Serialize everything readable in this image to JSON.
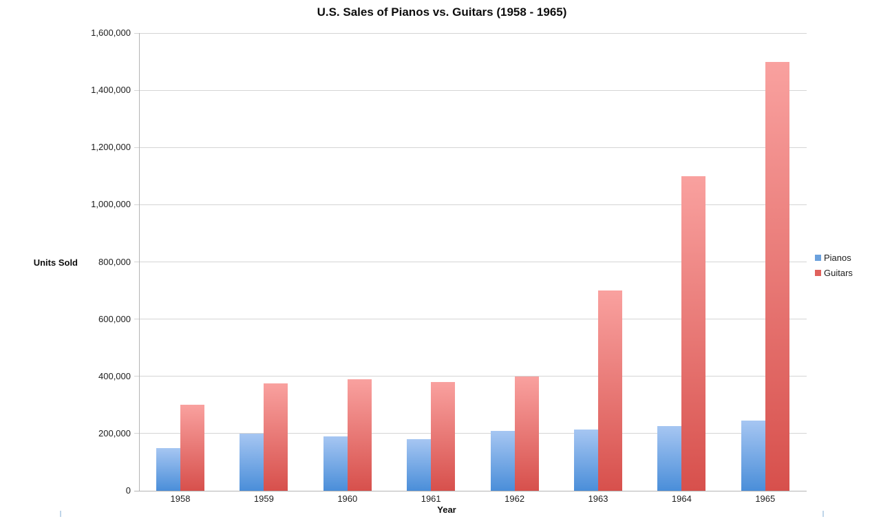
{
  "chart_data": {
    "type": "bar",
    "title": "U.S. Sales of Pianos vs. Guitars (1958 - 1965)",
    "xlabel": "Year",
    "ylabel": "Units Sold",
    "categories": [
      "1958",
      "1959",
      "1960",
      "1961",
      "1962",
      "1963",
      "1964",
      "1965"
    ],
    "series": [
      {
        "name": "Pianos",
        "values": [
          150000,
          200000,
          190000,
          180000,
          210000,
          215000,
          225000,
          245000
        ],
        "color_top": "#a6c6f2",
        "color_bottom": "#4a8ed9",
        "legend_color": "#6ba1dd"
      },
      {
        "name": "Guitars",
        "values": [
          300000,
          375000,
          390000,
          380000,
          400000,
          700000,
          1100000,
          1500000
        ],
        "color_top": "#f9a19f",
        "color_bottom": "#d7504c",
        "legend_color": "#e0615c"
      }
    ],
    "ylim": [
      0,
      1600000
    ],
    "ytick_interval": 200000,
    "grid": true,
    "legend_position": "right",
    "gridline_color": "#d4d4d4",
    "axis_color": "#b3b3b3"
  }
}
